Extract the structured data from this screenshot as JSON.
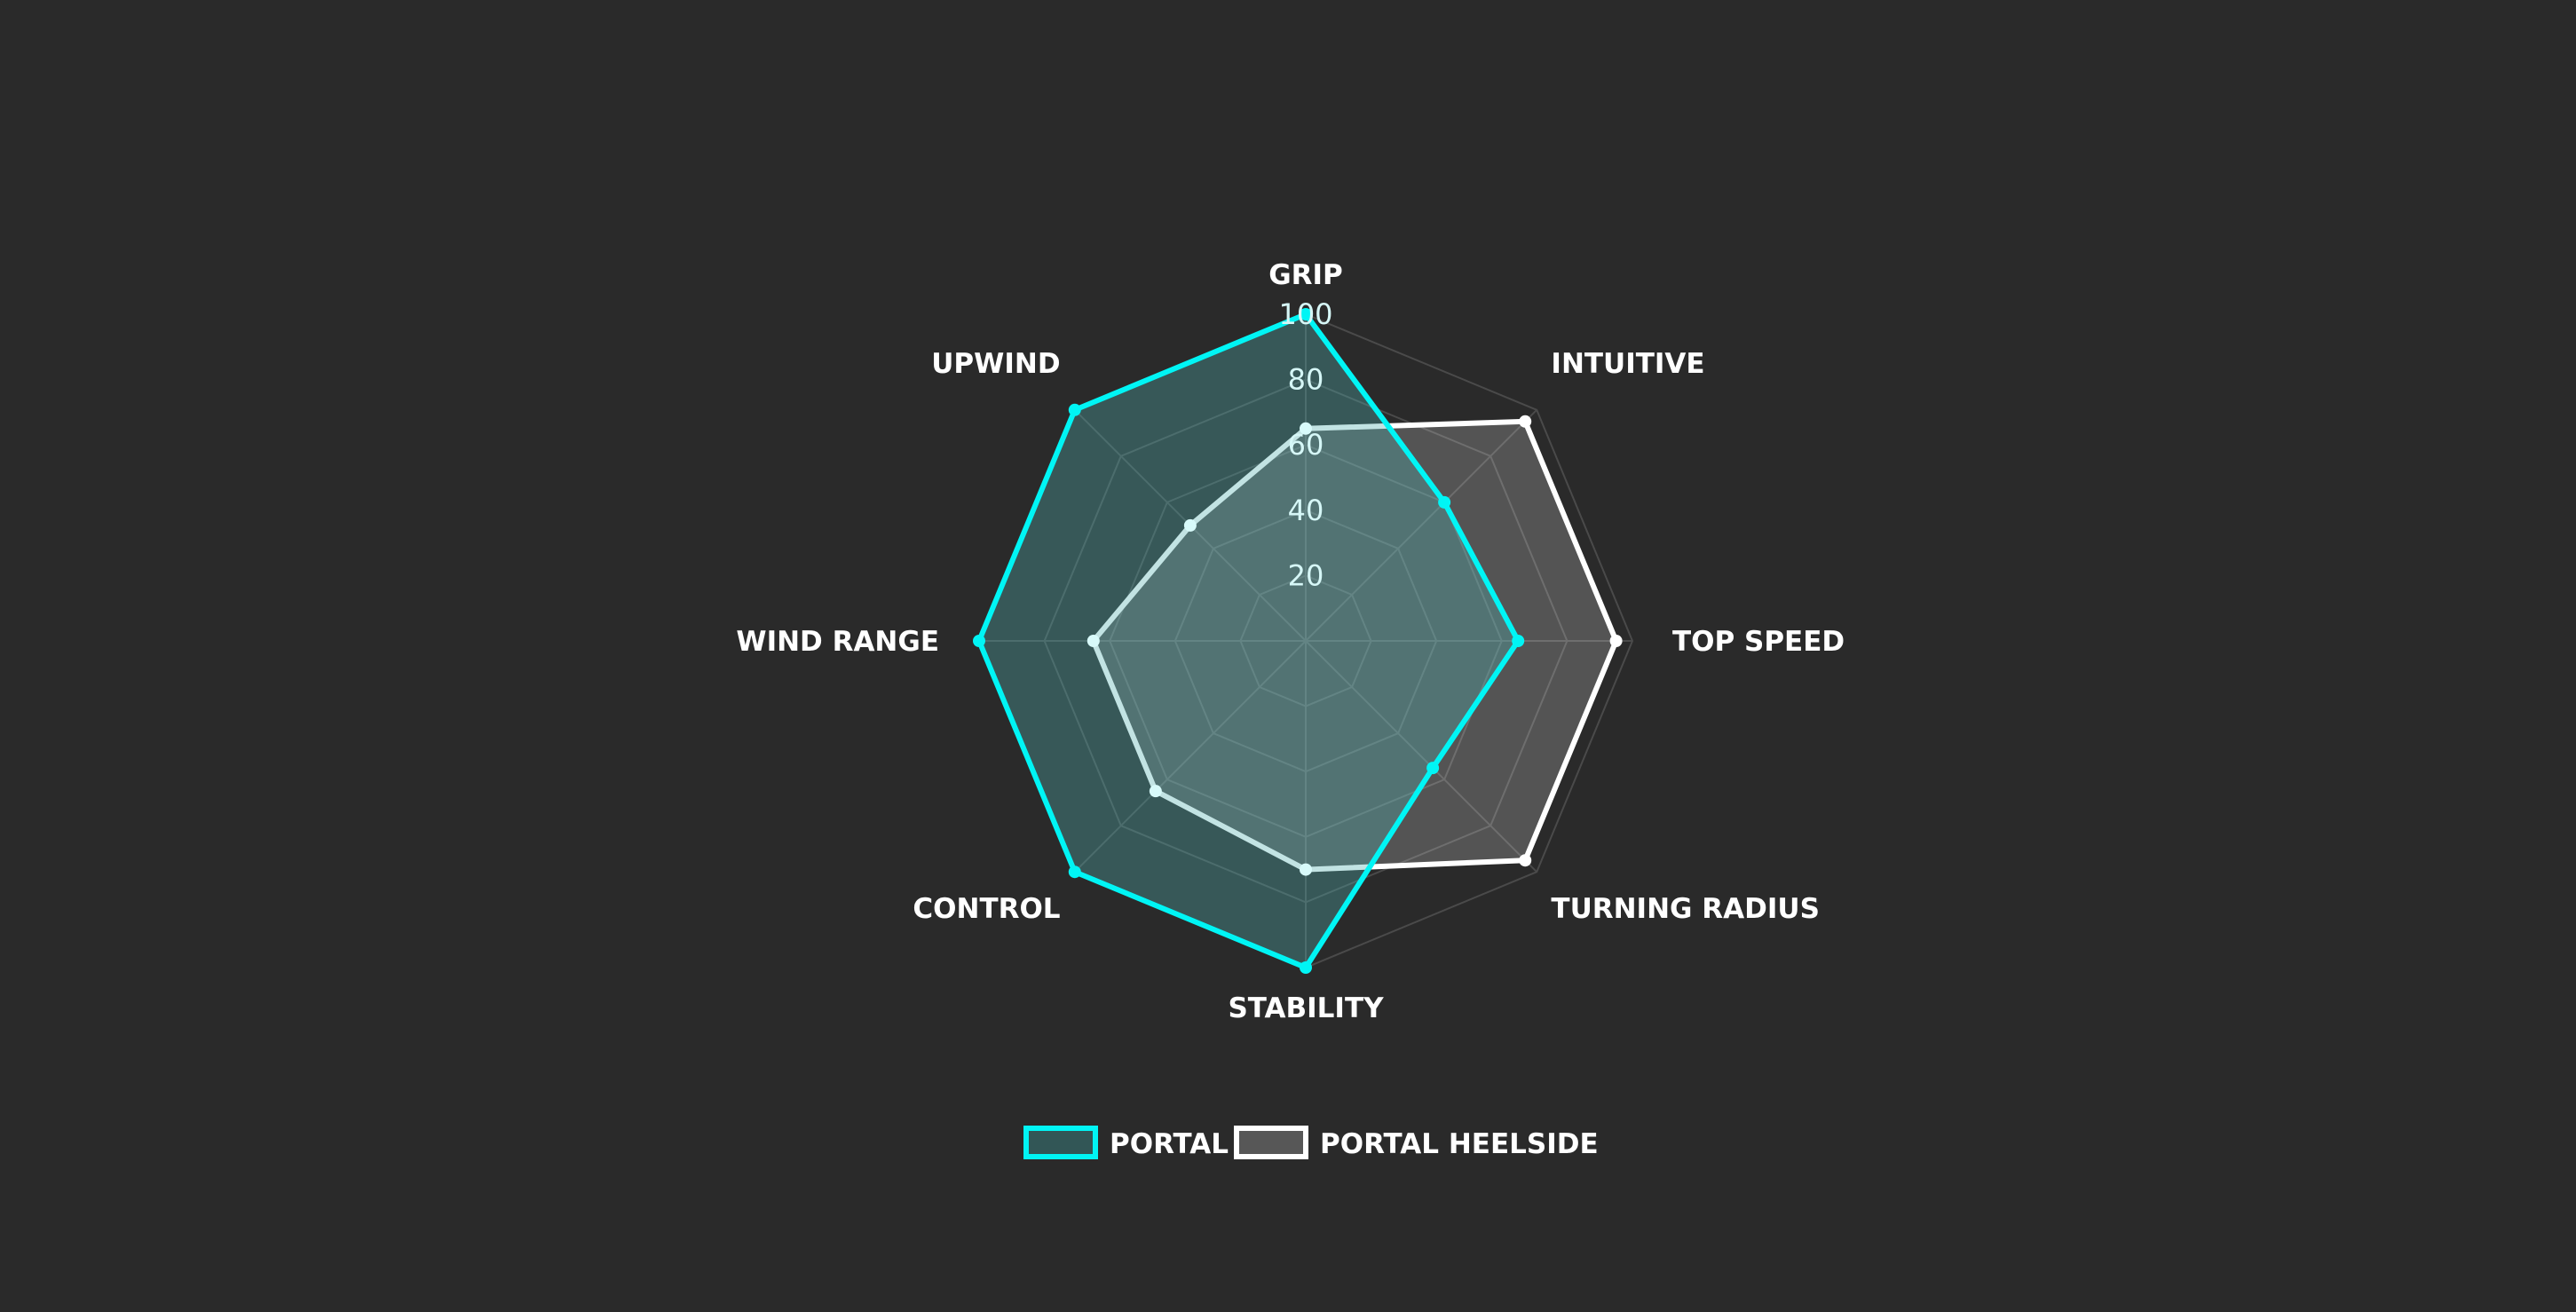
{
  "chart_data": {
    "type": "radar",
    "axes": [
      "GRIP",
      "INTUITIVE",
      "TOP SPEED",
      "TURNING RADIUS",
      "STABILITY",
      "CONTROL",
      "WIND RANGE",
      "UPWIND"
    ],
    "ticks": [
      "20",
      "40",
      "60",
      "80",
      "100"
    ],
    "range": [
      0,
      100
    ],
    "grid": true,
    "legend_placement": "bottom",
    "series": [
      {
        "name": "PORTAL",
        "values": [
          100,
          60,
          65,
          55,
          100,
          100,
          100,
          100
        ],
        "color": "#00f5f5",
        "fill": "#325656"
      },
      {
        "name": "PORTAL HEELSIDE",
        "values": [
          65,
          95,
          95,
          95,
          70,
          65,
          65,
          50
        ],
        "color": "#ffffff",
        "fill": "#575757"
      }
    ]
  },
  "colors": {
    "background": "#2a2a2a",
    "grid": "#4a4a4a"
  }
}
